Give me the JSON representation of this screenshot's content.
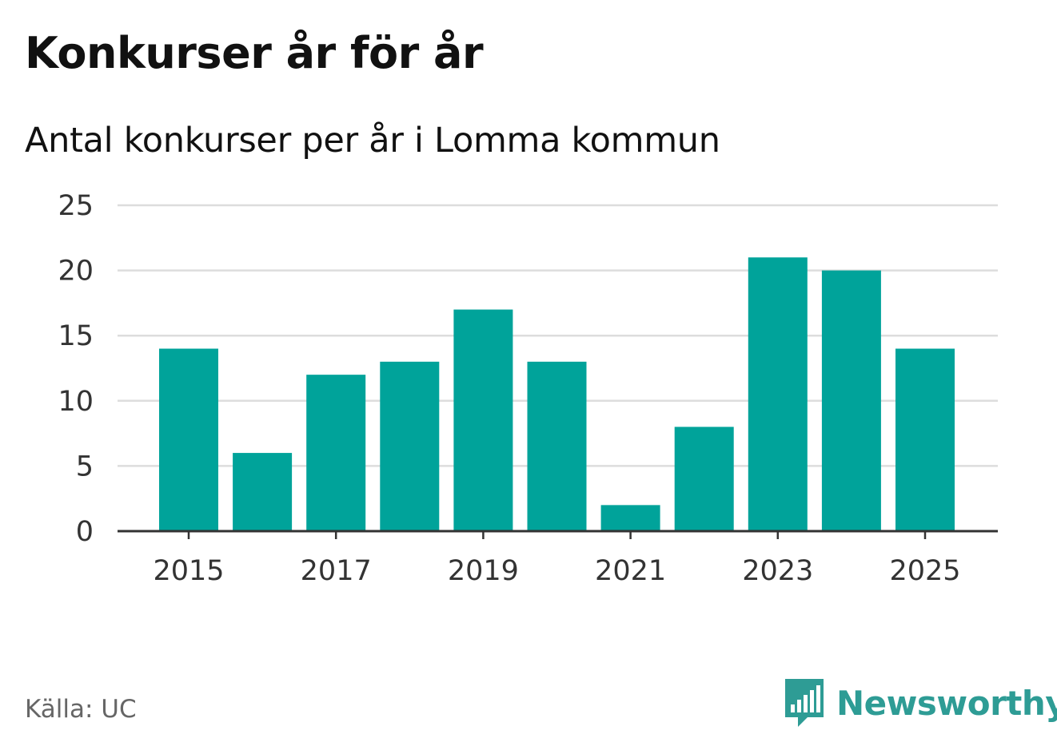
{
  "header": {
    "title": "Konkurser år för år",
    "subtitle": "Antal konkurser per år i Lomma kommun"
  },
  "footer": {
    "source": "Källa: UC",
    "brand": "Newsworthy"
  },
  "colors": {
    "bar": "#00a39a",
    "grid": "#dddddd",
    "axis": "#333333",
    "brand": "#2e9c95"
  },
  "chart_data": {
    "type": "bar",
    "title": "Konkurser år för år",
    "subtitle": "Antal konkurser per år i Lomma kommun",
    "xlabel": "",
    "ylabel": "",
    "categories": [
      "2015",
      "2016",
      "2017",
      "2018",
      "2019",
      "2020",
      "2021",
      "2022",
      "2023",
      "2024",
      "2025"
    ],
    "values": [
      14,
      6,
      12,
      13,
      17,
      13,
      2,
      8,
      21,
      20,
      14
    ],
    "x_tick_labels": [
      "2015",
      "2017",
      "2019",
      "2021",
      "2023",
      "2025"
    ],
    "y_ticks": [
      0,
      5,
      10,
      15,
      20,
      25
    ],
    "ylim": [
      0,
      25
    ],
    "grid": true,
    "legend": "none"
  }
}
